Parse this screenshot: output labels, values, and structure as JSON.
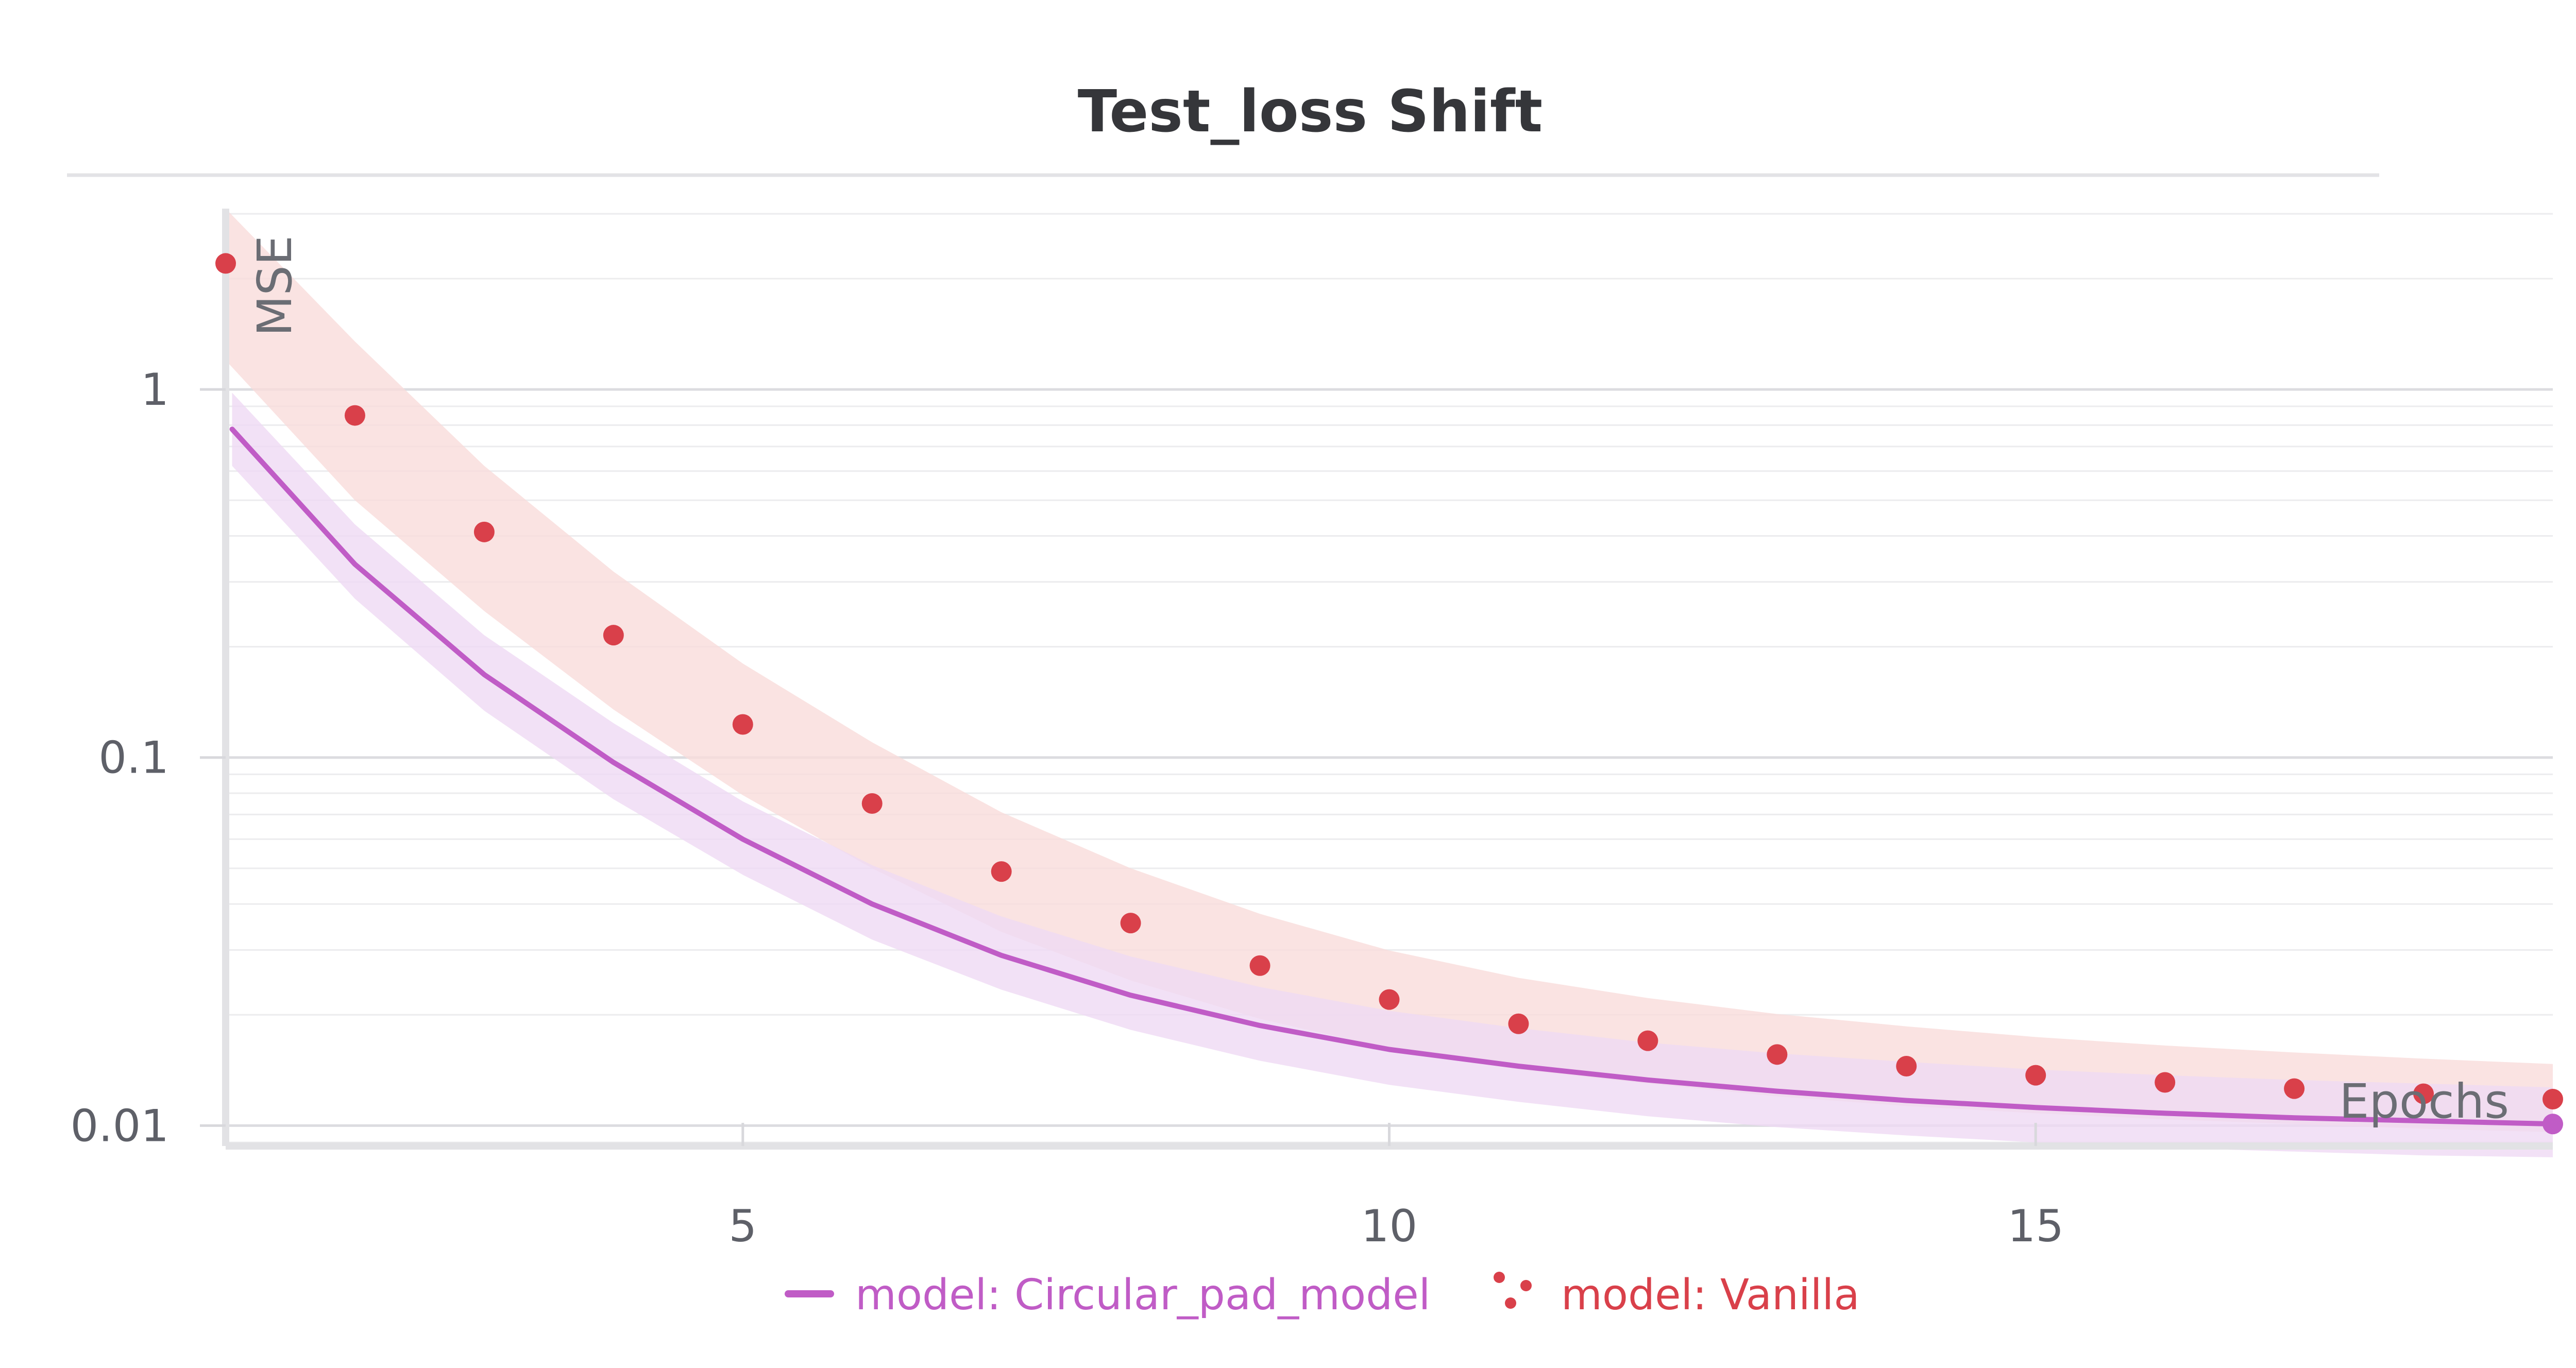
{
  "chart_data": {
    "type": "line",
    "title": "Test_loss Shift",
    "xlabel": "Epochs",
    "ylabel": "MSE",
    "x_ticks": [
      5,
      10,
      15
    ],
    "y_ticks": [
      {
        "value": 1,
        "label": "1"
      },
      {
        "value": 0.1,
        "label": "0.1"
      },
      {
        "value": 0.01,
        "label": "0.01"
      }
    ],
    "xlim": [
      1,
      19
    ],
    "ylim": [
      0.0088,
      3.1
    ],
    "y_scale": "log",
    "grid": true,
    "legend_position": "bottom-center",
    "x": [
      1,
      2,
      3,
      4,
      5,
      6,
      7,
      8,
      9,
      10,
      11,
      12,
      13,
      14,
      15,
      16,
      17,
      18,
      19
    ],
    "series": [
      {
        "name": "model: Circular_pad_model",
        "style": "line",
        "color": "#c05cc6",
        "band_color": "#efdaf4",
        "x": [
          1.05,
          2,
          3,
          4,
          5,
          6,
          7,
          8,
          9,
          10,
          11,
          12,
          13,
          14,
          15,
          16,
          17,
          18,
          19
        ],
        "values": [
          0.78,
          0.335,
          0.168,
          0.097,
          0.06,
          0.04,
          0.029,
          0.0226,
          0.0187,
          0.0161,
          0.0145,
          0.0133,
          0.0124,
          0.0117,
          0.0112,
          0.0108,
          0.0105,
          0.0103,
          0.0101
        ],
        "band_lower": [
          0.62,
          0.27,
          0.134,
          0.077,
          0.048,
          0.032,
          0.0234,
          0.0182,
          0.015,
          0.0129,
          0.0116,
          0.0106,
          0.0099,
          0.0094,
          0.009,
          0.0087,
          0.0085,
          0.0083,
          0.0082
        ],
        "band_upper": [
          0.98,
          0.43,
          0.215,
          0.124,
          0.076,
          0.051,
          0.037,
          0.0288,
          0.0238,
          0.0205,
          0.0184,
          0.0168,
          0.0157,
          0.0149,
          0.0142,
          0.0137,
          0.0133,
          0.013,
          0.0127
        ]
      },
      {
        "name": "model: Vanilla",
        "style": "scatter",
        "color": "#d9404a",
        "band_color": "#f9dcdb",
        "x": [
          1,
          2,
          3,
          4,
          5,
          6,
          7,
          8,
          9,
          10,
          11,
          12,
          13,
          14,
          15,
          16,
          17,
          18,
          19
        ],
        "values": [
          2.2,
          0.85,
          0.41,
          0.215,
          0.123,
          0.075,
          0.049,
          0.0355,
          0.0272,
          0.022,
          0.0189,
          0.017,
          0.0156,
          0.0145,
          0.0137,
          0.0131,
          0.0126,
          0.0122,
          0.0118
        ],
        "band_lower": [
          1.2,
          0.5,
          0.25,
          0.135,
          0.079,
          0.05,
          0.0336,
          0.0248,
          0.0195,
          0.0162,
          0.0142,
          0.013,
          0.012,
          0.0113,
          0.0108,
          0.0104,
          0.0101,
          0.0098,
          0.0096
        ],
        "band_upper": [
          3.1,
          1.35,
          0.62,
          0.32,
          0.18,
          0.11,
          0.071,
          0.05,
          0.0376,
          0.0299,
          0.0252,
          0.0222,
          0.0201,
          0.0186,
          0.0174,
          0.0165,
          0.0158,
          0.0152,
          0.0147
        ]
      }
    ]
  }
}
